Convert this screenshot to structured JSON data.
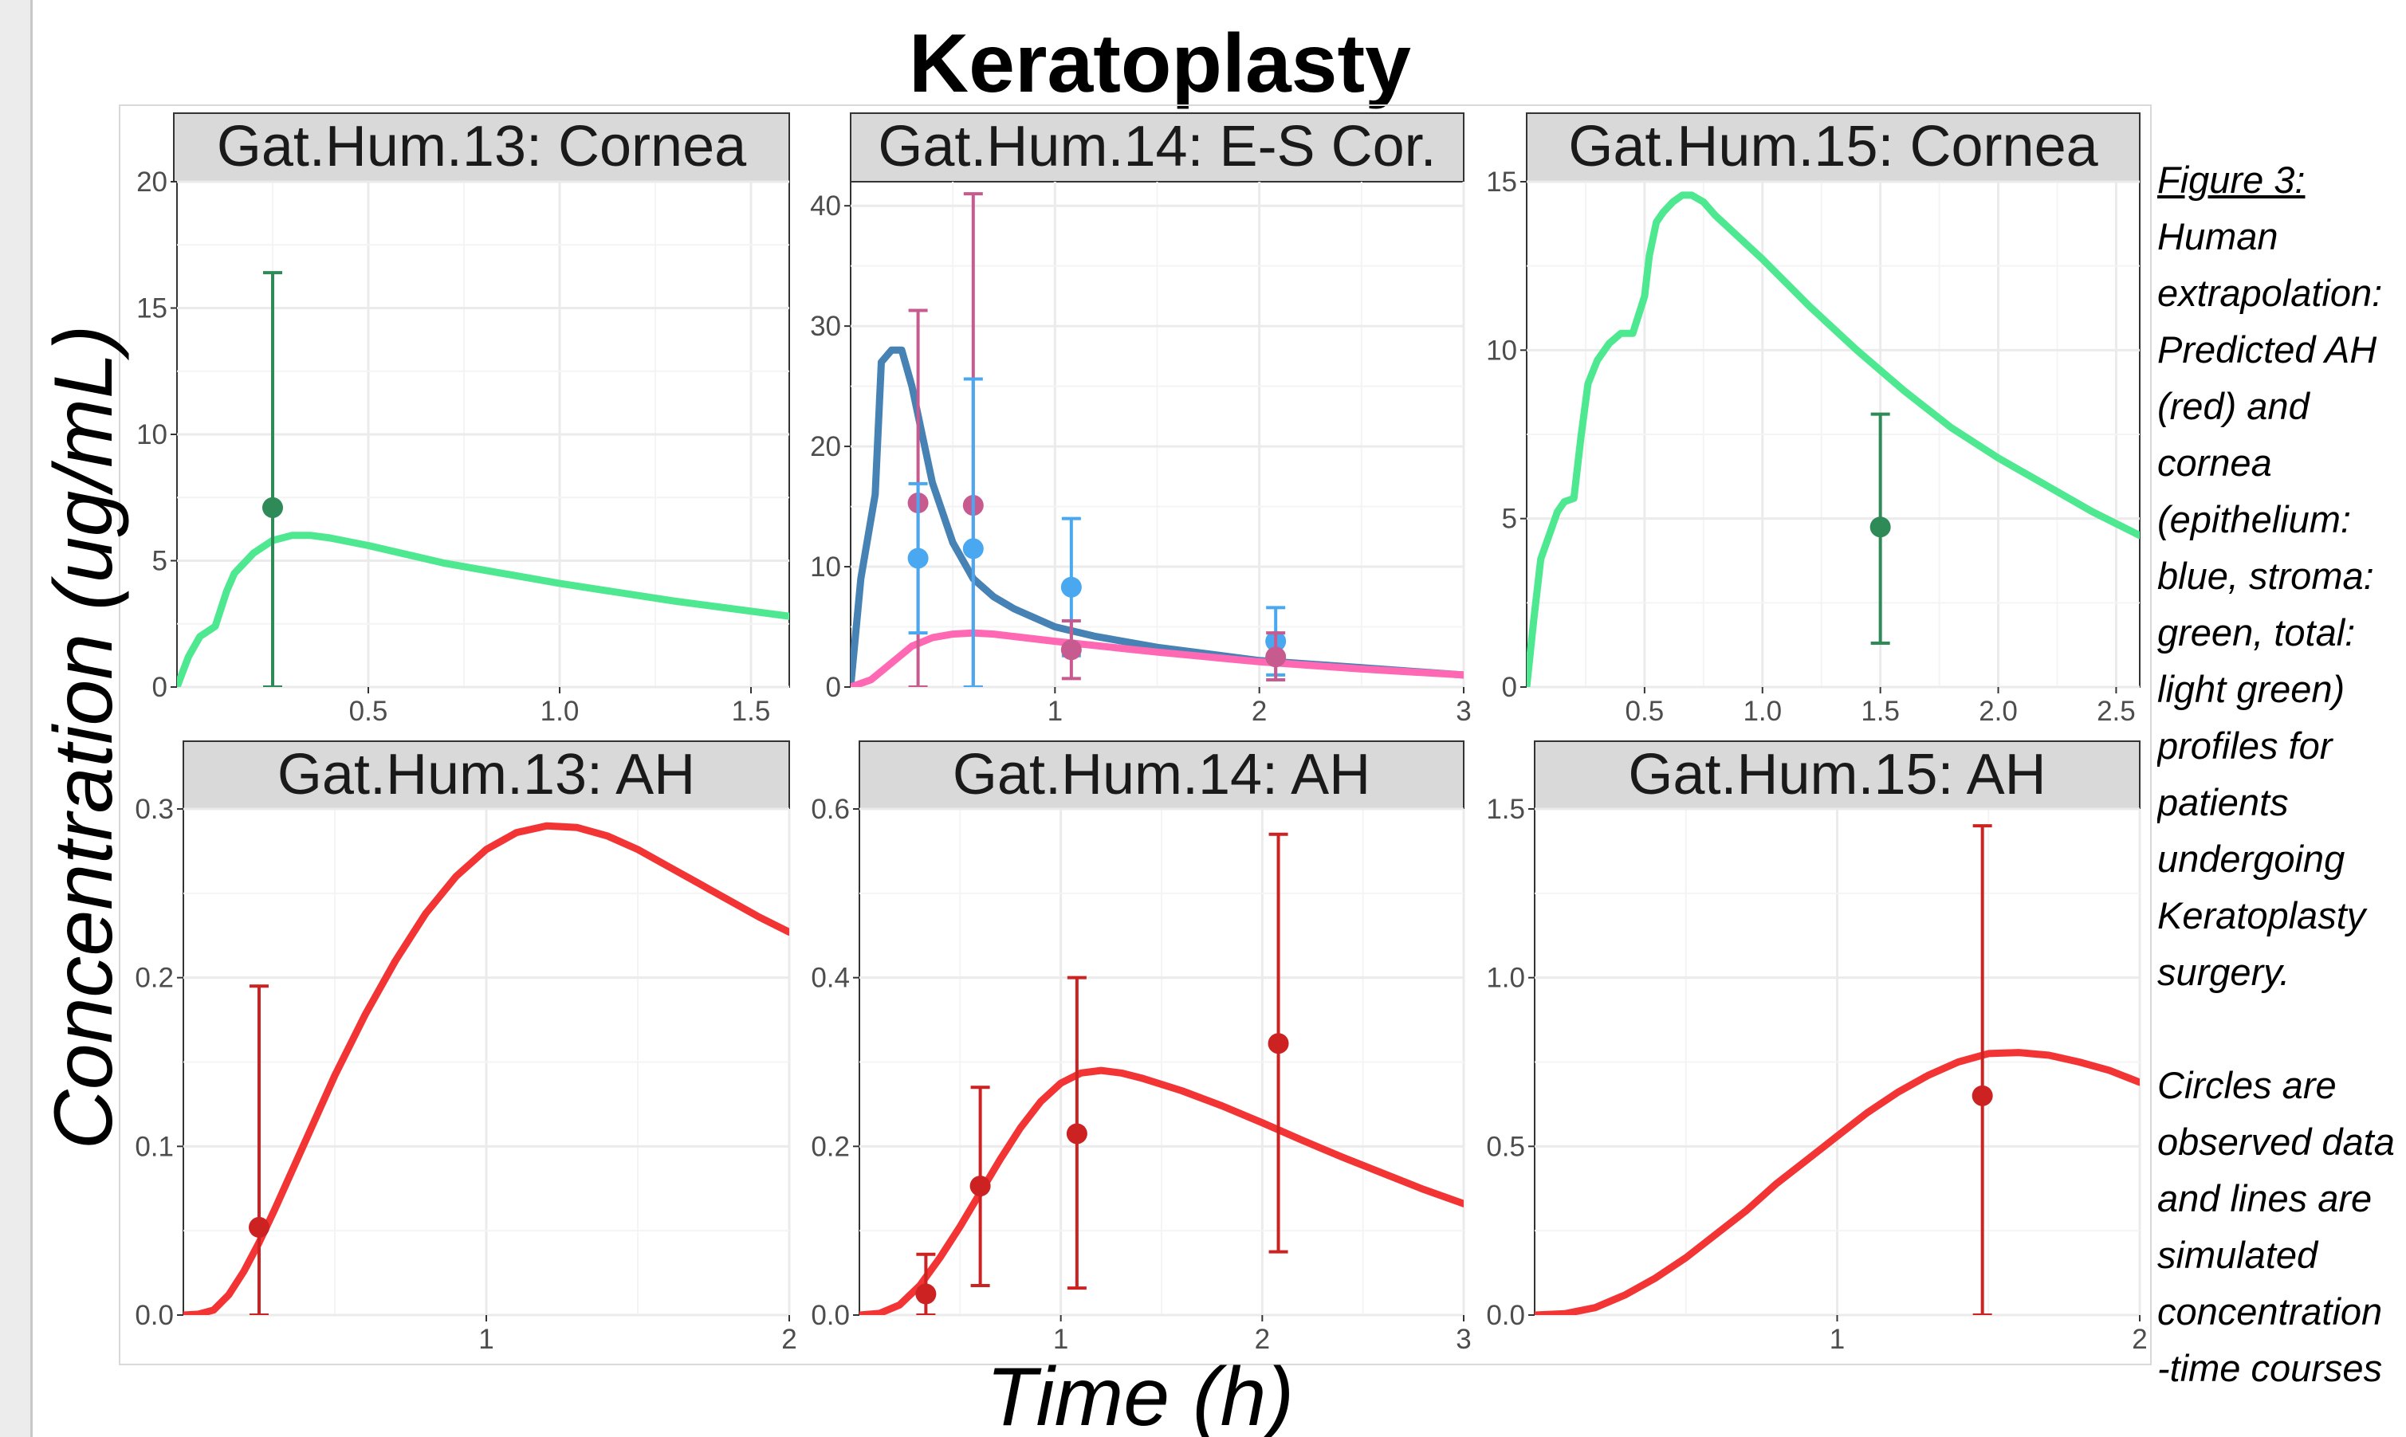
{
  "title": "Keratoplasty",
  "ylabel": "Concentration (ug/mL)",
  "xlabel": "Time (h)",
  "caption": {
    "title": "Figure 3:",
    "lines": [
      "Human",
      "extrapolation:",
      "Predicted AH",
      "(red) and",
      "cornea",
      "(epithelium:",
      "blue, stroma:",
      "green, total:",
      "light green)",
      "profiles for",
      "patients",
      "undergoing",
      "Keratoplasty",
      "surgery."
    ],
    "lines2": [
      "Circles are",
      "observed data",
      "and lines are",
      "simulated",
      "concentration",
      "-time courses"
    ]
  },
  "colors": {
    "total": "#4de88f",
    "stroma": "#2e8b57",
    "epithelium_line": "#4682b4",
    "epithelium_obs": "#4aa8f0",
    "ah_line": "#f23434",
    "ah_obs": "#cc2222",
    "pink_line": "#ff69b4",
    "pink_obs": "#c75b8f"
  },
  "chart_data": [
    {
      "type": "line",
      "panel": "Gat.Hum.13: Cornea",
      "xlim": [
        0,
        1.6
      ],
      "ylim": [
        0,
        20
      ],
      "xticks": [
        0.5,
        1.0,
        1.5
      ],
      "xtick_labels": [
        "0.5",
        "1.0",
        "1.5"
      ],
      "yticks": [
        0,
        5,
        10,
        15,
        20
      ],
      "ytick_labels": [
        "0",
        "5",
        "10",
        "15",
        "20"
      ],
      "series": [
        {
          "color": "total",
          "x": [
            0,
            0.03,
            0.06,
            0.1,
            0.13,
            0.15,
            0.2,
            0.25,
            0.3,
            0.35,
            0.4,
            0.5,
            0.7,
            1.0,
            1.3,
            1.6
          ],
          "y": [
            0,
            1.2,
            2.0,
            2.4,
            3.8,
            4.5,
            5.3,
            5.8,
            6.0,
            6.0,
            5.9,
            5.6,
            4.9,
            4.1,
            3.4,
            2.8
          ]
        }
      ],
      "points": [
        {
          "color": "stroma",
          "x": 0.25,
          "y": 7.1,
          "ylo": 0,
          "yhi": 16.4
        }
      ]
    },
    {
      "type": "line",
      "panel": "Gat.Hum.14: E-S Cor.",
      "xlim": [
        0,
        3
      ],
      "ylim": [
        0,
        42
      ],
      "xticks": [
        1,
        2,
        3
      ],
      "xtick_labels": [
        "1",
        "2",
        "3"
      ],
      "yticks": [
        0,
        10,
        20,
        30,
        40
      ],
      "ytick_labels": [
        "0",
        "10",
        "20",
        "30",
        "40"
      ],
      "series": [
        {
          "color": "epithelium_line",
          "x": [
            0,
            0.05,
            0.1,
            0.12,
            0.15,
            0.2,
            0.25,
            0.3,
            0.35,
            0.4,
            0.5,
            0.6,
            0.7,
            0.8,
            1.0,
            1.2,
            1.5,
            2.0,
            2.5,
            3.0
          ],
          "y": [
            0,
            9,
            14,
            16,
            27,
            28,
            28,
            25,
            21,
            17,
            12,
            9,
            7.5,
            6.5,
            5,
            4.2,
            3.3,
            2.2,
            1.6,
            1.0
          ]
        },
        {
          "color": "pink_line",
          "x": [
            0,
            0.1,
            0.2,
            0.3,
            0.4,
            0.5,
            0.6,
            0.7,
            0.8,
            1.0,
            1.5,
            2.0,
            2.5,
            3.0
          ],
          "y": [
            0,
            0.6,
            2,
            3.4,
            4.1,
            4.4,
            4.5,
            4.4,
            4.2,
            3.8,
            2.9,
            2.1,
            1.5,
            1.0
          ]
        }
      ],
      "points": [
        {
          "color": "pink_obs",
          "x": 0.33,
          "y": 15.3,
          "ylo": 0,
          "yhi": 31.3
        },
        {
          "color": "epithelium_obs",
          "x": 0.33,
          "y": 10.7,
          "ylo": 4.5,
          "yhi": 16.9
        },
        {
          "color": "pink_obs",
          "x": 0.6,
          "y": 15.1,
          "ylo": 0,
          "yhi": 41.0
        },
        {
          "color": "epithelium_obs",
          "x": 0.6,
          "y": 11.5,
          "ylo": 0,
          "yhi": 25.6
        },
        {
          "color": "epithelium_obs",
          "x": 1.08,
          "y": 8.3,
          "ylo": 2.6,
          "yhi": 14.0
        },
        {
          "color": "pink_obs",
          "x": 1.08,
          "y": 3.1,
          "ylo": 0.7,
          "yhi": 5.5
        },
        {
          "color": "epithelium_obs",
          "x": 2.08,
          "y": 3.8,
          "ylo": 1.0,
          "yhi": 6.6
        },
        {
          "color": "pink_obs",
          "x": 2.08,
          "y": 2.5,
          "ylo": 0.6,
          "yhi": 4.5
        }
      ]
    },
    {
      "type": "line",
      "panel": "Gat.Hum.15: Cornea",
      "xlim": [
        0,
        2.6
      ],
      "ylim": [
        0,
        15
      ],
      "xticks": [
        0.5,
        1.0,
        1.5,
        2.0,
        2.5
      ],
      "xtick_labels": [
        "0.5",
        "1.0",
        "1.5",
        "2.0",
        "2.5"
      ],
      "yticks": [
        0,
        5,
        10,
        15
      ],
      "ytick_labels": [
        "0",
        "5",
        "10",
        "15"
      ],
      "series": [
        {
          "color": "total",
          "x": [
            0,
            0.03,
            0.06,
            0.1,
            0.13,
            0.16,
            0.2,
            0.23,
            0.26,
            0.3,
            0.35,
            0.4,
            0.45,
            0.5,
            0.52,
            0.55,
            0.58,
            0.62,
            0.66,
            0.7,
            0.75,
            0.8,
            1.0,
            1.2,
            1.4,
            1.6,
            1.8,
            2.0,
            2.2,
            2.4,
            2.6
          ],
          "y": [
            0,
            2.0,
            3.8,
            4.6,
            5.2,
            5.5,
            5.6,
            7.4,
            9.0,
            9.7,
            10.2,
            10.5,
            10.5,
            11.6,
            12.8,
            13.8,
            14.1,
            14.4,
            14.6,
            14.6,
            14.4,
            14.0,
            12.7,
            11.3,
            10.0,
            8.8,
            7.7,
            6.8,
            6.0,
            5.2,
            4.5
          ]
        }
      ],
      "points": [
        {
          "color": "stroma",
          "x": 1.5,
          "y": 4.75,
          "ylo": 1.3,
          "yhi": 8.1
        }
      ]
    },
    {
      "type": "line",
      "panel": "Gat.Hum.13: AH",
      "xlim": [
        0,
        2
      ],
      "ylim": [
        0,
        0.3
      ],
      "xticks": [
        1,
        2
      ],
      "xtick_labels": [
        "1",
        "2"
      ],
      "yticks": [
        0,
        0.1,
        0.2,
        0.3
      ],
      "ytick_labels": [
        "0.0",
        "0.1",
        "0.2",
        "0.3"
      ],
      "series": [
        {
          "color": "ah_line",
          "x": [
            0,
            0.05,
            0.1,
            0.15,
            0.2,
            0.25,
            0.3,
            0.4,
            0.5,
            0.6,
            0.7,
            0.8,
            0.9,
            1.0,
            1.1,
            1.2,
            1.3,
            1.4,
            1.5,
            1.6,
            1.7,
            1.8,
            1.9,
            2.0
          ],
          "y": [
            0,
            0.0005,
            0.003,
            0.012,
            0.026,
            0.043,
            0.062,
            0.102,
            0.142,
            0.178,
            0.21,
            0.238,
            0.26,
            0.276,
            0.286,
            0.29,
            0.289,
            0.284,
            0.276,
            0.266,
            0.256,
            0.246,
            0.236,
            0.227
          ]
        }
      ],
      "points": [
        {
          "color": "ah_obs",
          "x": 0.25,
          "y": 0.052,
          "ylo": 0,
          "yhi": 0.195
        }
      ]
    },
    {
      "type": "line",
      "panel": "Gat.Hum.14: AH",
      "xlim": [
        0,
        3
      ],
      "ylim": [
        0,
        0.6
      ],
      "xticks": [
        1,
        2,
        3
      ],
      "xtick_labels": [
        "1",
        "2",
        "3"
      ],
      "yticks": [
        0,
        0.2,
        0.4,
        0.6
      ],
      "ytick_labels": [
        "0.0",
        "0.2",
        "0.4",
        "0.6"
      ],
      "series": [
        {
          "color": "ah_line",
          "x": [
            0,
            0.1,
            0.2,
            0.3,
            0.4,
            0.5,
            0.6,
            0.7,
            0.8,
            0.9,
            1.0,
            1.1,
            1.2,
            1.3,
            1.4,
            1.6,
            1.8,
            2.0,
            2.2,
            2.4,
            2.6,
            2.8,
            3.0
          ],
          "y": [
            0,
            0.002,
            0.012,
            0.035,
            0.068,
            0.105,
            0.145,
            0.185,
            0.222,
            0.253,
            0.275,
            0.287,
            0.29,
            0.287,
            0.281,
            0.266,
            0.248,
            0.228,
            0.207,
            0.187,
            0.168,
            0.149,
            0.132
          ]
        }
      ],
      "points": [
        {
          "color": "ah_obs",
          "x": 0.33,
          "y": 0.025,
          "ylo": 0,
          "yhi": 0.072
        },
        {
          "color": "ah_obs",
          "x": 0.6,
          "y": 0.153,
          "ylo": 0.035,
          "yhi": 0.27
        },
        {
          "color": "ah_obs",
          "x": 1.08,
          "y": 0.215,
          "ylo": 0.032,
          "yhi": 0.4
        },
        {
          "color": "ah_obs",
          "x": 2.08,
          "y": 0.322,
          "ylo": 0.075,
          "yhi": 0.57
        }
      ]
    },
    {
      "type": "line",
      "panel": "Gat.Hum.15: AH",
      "xlim": [
        0,
        2
      ],
      "ylim": [
        0,
        1.5
      ],
      "xticks": [
        1,
        2
      ],
      "xtick_labels": [
        "1",
        "2"
      ],
      "yticks": [
        0,
        0.5,
        1.0,
        1.5
      ],
      "ytick_labels": [
        "0.0",
        "0.5",
        "1.0",
        "1.5"
      ],
      "series": [
        {
          "color": "ah_line",
          "x": [
            0,
            0.1,
            0.2,
            0.3,
            0.4,
            0.5,
            0.6,
            0.7,
            0.8,
            0.9,
            1.0,
            1.1,
            1.2,
            1.3,
            1.4,
            1.5,
            1.6,
            1.7,
            1.8,
            1.9,
            2.0
          ],
          "y": [
            0,
            0.004,
            0.022,
            0.06,
            0.11,
            0.17,
            0.24,
            0.31,
            0.39,
            0.46,
            0.53,
            0.6,
            0.66,
            0.71,
            0.75,
            0.775,
            0.778,
            0.77,
            0.75,
            0.725,
            0.69
          ]
        }
      ],
      "points": [
        {
          "color": "ah_obs",
          "x": 1.48,
          "y": 0.65,
          "ylo": 0,
          "yhi": 1.45
        }
      ]
    }
  ]
}
